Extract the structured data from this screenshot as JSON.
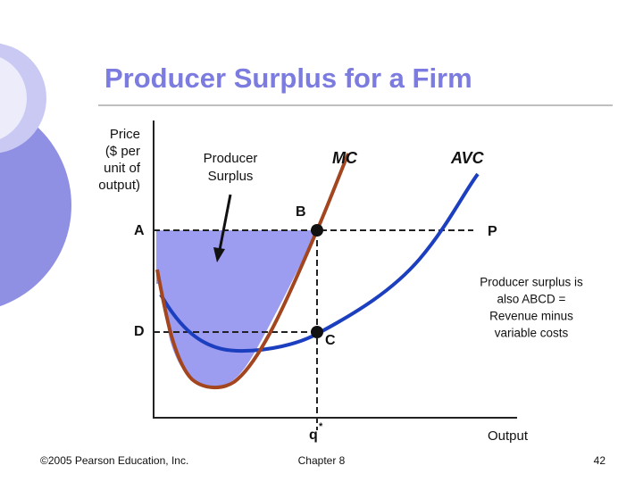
{
  "title": "Producer Surplus for a Firm",
  "y_axis_label": [
    "Price",
    "($ per",
    "unit of",
    "output)"
  ],
  "x_axis_label": "Output",
  "curves": {
    "mc": "MC",
    "avc": "AVC"
  },
  "region_label": [
    "Producer",
    "Surplus"
  ],
  "points": {
    "a": "A",
    "b": "B",
    "c": "C",
    "d": "D",
    "p": "P",
    "q": "q",
    "q_superscript": "*"
  },
  "note": [
    "Producer surplus is",
    "also ABCD =",
    "Revenue minus",
    "variable costs"
  ],
  "footer": {
    "copyright": "©2005 Pearson Education, Inc.",
    "chapter": "Chapter 8",
    "page": "42"
  }
}
